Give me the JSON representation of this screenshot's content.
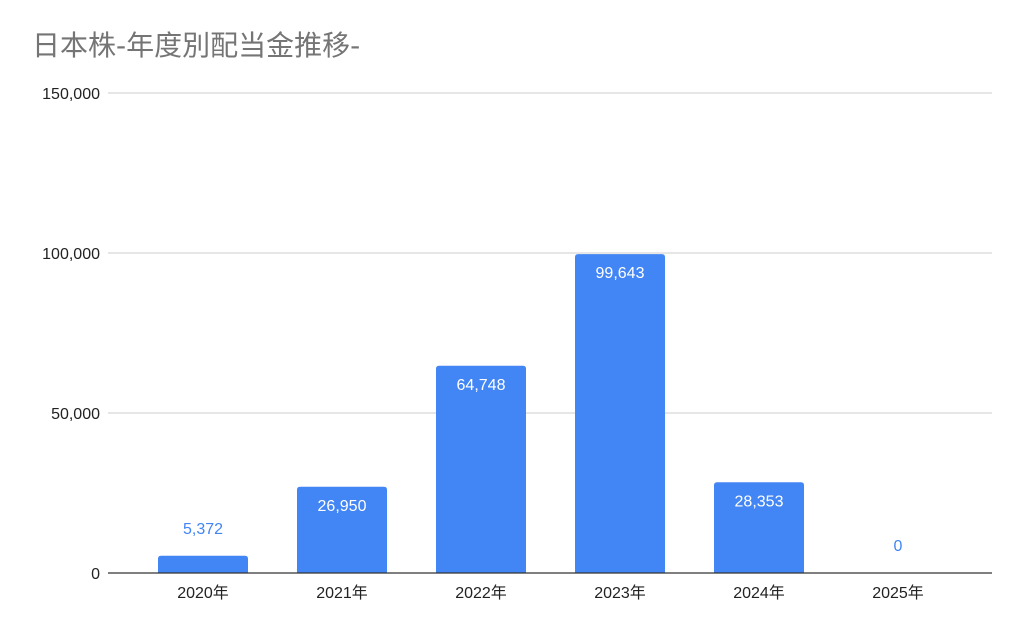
{
  "chart_data": {
    "type": "bar",
    "title": "日本株-年度別配当金推移-",
    "xlabel": "",
    "ylabel": "",
    "categories": [
      "2020年",
      "2021年",
      "2022年",
      "2023年",
      "2024年",
      "2025年"
    ],
    "values": [
      5372,
      26950,
      64748,
      99643,
      28353,
      0
    ],
    "data_labels": [
      "5,372",
      "26,950",
      "64,748",
      "99,643",
      "28,353",
      "0"
    ],
    "ylim": [
      0,
      150000
    ],
    "yticks": [
      0,
      50000,
      100000,
      150000
    ],
    "ytick_labels": [
      "0",
      "50,000",
      "100,000",
      "150,000"
    ],
    "grid": true,
    "legend": "none",
    "bar_color": "#4285f4",
    "label_inside_color": "#ffffff",
    "label_outside_color": "#4285f4"
  }
}
